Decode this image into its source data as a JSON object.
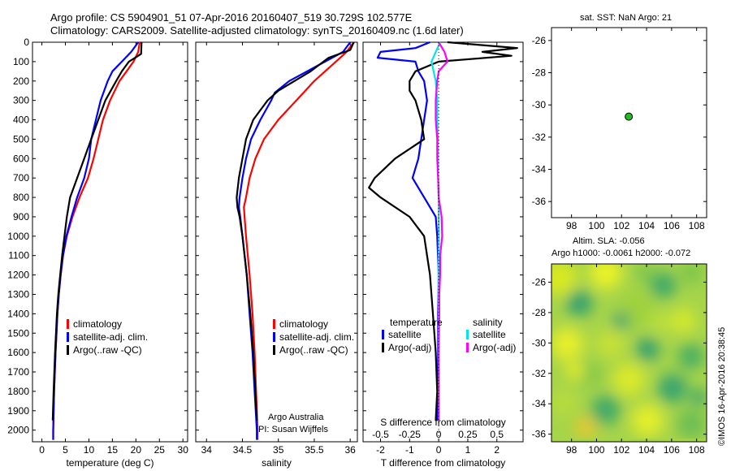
{
  "header": {
    "line1": "Argo profile: CS 5904901_51 07-Apr-2016 20160407_519 30.729S 102.577E",
    "line2": "Climatology: CARS2009. Satellite-adjusted climatology: synTS_20160409.nc (1.6d later)"
  },
  "colors": {
    "climatology": "#ff0000",
    "satellite": "#0000ff",
    "argo": "#000000",
    "salinity_sat": "#00e5e5",
    "salinity_argo": "#ff00ff"
  },
  "chart_data": [
    {
      "type": "line",
      "id": "temperature",
      "xlabel": "temperature (deg C)",
      "xlim": [
        -2,
        31
      ],
      "ylim": [
        2060,
        0
      ],
      "x_ticks": [
        0,
        5,
        10,
        15,
        20,
        25,
        30
      ],
      "y_ticks": [
        0,
        100,
        200,
        300,
        400,
        500,
        600,
        700,
        800,
        900,
        1000,
        1100,
        1200,
        1300,
        1400,
        1500,
        1600,
        1700,
        1800,
        1900,
        2000
      ],
      "legend": [
        "climatology",
        "satellite-adj. clim.",
        "Argo(..raw -QC)"
      ],
      "series": [
        {
          "name": "climatology",
          "color": "#ff0000",
          "depth": [
            0,
            50,
            100,
            150,
            200,
            300,
            400,
            500,
            600,
            700,
            800,
            900,
            1000,
            1100,
            1200,
            1300,
            1400,
            1600,
            1800,
            2000,
            2050
          ],
          "values": [
            20.8,
            20.5,
            19.5,
            18.0,
            16.5,
            14.5,
            13.0,
            12.0,
            11.0,
            9.8,
            8.0,
            6.5,
            5.3,
            4.5,
            4.0,
            3.6,
            3.3,
            2.9,
            2.6,
            2.4,
            2.4
          ]
        },
        {
          "name": "satellite-adj. clim.",
          "color": "#0000ff",
          "depth": [
            0,
            50,
            100,
            150,
            200,
            300,
            400,
            500,
            600,
            700,
            800,
            900,
            1000,
            1100,
            1200,
            1300,
            1400,
            1600,
            1800,
            2000,
            2050
          ],
          "values": [
            20.5,
            19.0,
            17.0,
            15.0,
            14.0,
            12.5,
            11.5,
            10.5,
            10.0,
            9.0,
            7.5,
            6.3,
            5.2,
            4.5,
            4.0,
            3.6,
            3.3,
            2.9,
            2.6,
            2.4,
            2.4
          ]
        },
        {
          "name": "Argo(..raw -QC)",
          "color": "#000000",
          "depth": [
            0,
            60,
            70,
            100,
            150,
            200,
            300,
            400,
            500,
            600,
            700,
            800,
            900,
            1000,
            1100,
            1200,
            1300,
            1400,
            1600,
            1800,
            1950
          ],
          "values": [
            21.2,
            21.1,
            20.5,
            18.5,
            17.0,
            15.8,
            13.5,
            12.0,
            10.5,
            9.0,
            7.5,
            6.0,
            5.3,
            4.8,
            4.3,
            3.9,
            3.5,
            3.2,
            2.8,
            2.5,
            2.3
          ]
        }
      ]
    },
    {
      "type": "line",
      "id": "salinity",
      "xlabel": "salinity",
      "xlim": [
        33.85,
        36.1
      ],
      "ylim": [
        2060,
        0
      ],
      "x_ticks": [
        34,
        34.5,
        35,
        35.5,
        36
      ],
      "x_tick_labels": [
        "34",
        "34.5",
        "35",
        "35.5",
        "36"
      ],
      "legend": [
        "climatology",
        "satellite-adj. clim.",
        "Argo(..raw -QC)"
      ],
      "annotation": [
        "Argo Australia",
        "PI: Susan Wijffels"
      ],
      "series": [
        {
          "name": "climatology",
          "color": "#ff0000",
          "depth": [
            0,
            50,
            100,
            200,
            300,
            400,
            500,
            600,
            700,
            800,
            850,
            900,
            1000,
            1200,
            1400,
            1600,
            1800,
            2000,
            2050
          ],
          "values": [
            36.05,
            35.95,
            35.8,
            35.5,
            35.25,
            35.0,
            34.8,
            34.68,
            34.6,
            34.55,
            34.52,
            34.53,
            34.55,
            34.6,
            34.64,
            34.67,
            34.69,
            34.71,
            34.71
          ]
        },
        {
          "name": "satellite-adj. clim.",
          "color": "#0000ff",
          "depth": [
            0,
            50,
            100,
            200,
            260,
            300,
            400,
            500,
            600,
            700,
            800,
            850,
            900,
            1000,
            1200,
            1400,
            1600,
            1800,
            2000,
            2050
          ],
          "values": [
            36.0,
            35.9,
            35.65,
            35.15,
            34.95,
            34.9,
            34.75,
            34.62,
            34.55,
            34.5,
            34.46,
            34.45,
            34.47,
            34.5,
            34.56,
            34.6,
            34.64,
            34.67,
            34.7,
            34.7
          ]
        },
        {
          "name": "Argo(..raw -QC)",
          "color": "#000000",
          "depth": [
            0,
            40,
            80,
            150,
            250,
            300,
            400,
            500,
            600,
            700,
            800,
            850,
            900,
            1000,
            1200,
            1400,
            1600,
            1800,
            1950
          ],
          "values": [
            36.05,
            36.0,
            35.7,
            35.45,
            35.0,
            34.85,
            34.65,
            34.55,
            34.5,
            34.45,
            34.42,
            34.43,
            34.46,
            34.5,
            34.56,
            34.61,
            34.65,
            34.68,
            34.7
          ]
        }
      ]
    },
    {
      "type": "line",
      "id": "difference",
      "xlabel": "T difference from climatology",
      "xlabel_top": "S difference from climatology",
      "xlim": [
        -2.6,
        2.9
      ],
      "ylim": [
        2060,
        0
      ],
      "x_ticks": [
        -2,
        -1,
        0,
        1,
        2
      ],
      "s_ticks": [
        -0.5,
        -0.25,
        0,
        0.25,
        0.5
      ],
      "s_tick_labels": [
        "-0.5",
        "-0.25",
        "0",
        "0.25",
        "0.5"
      ],
      "legend_temperature": {
        "title": "temperature",
        "items": [
          "satellite",
          "Argo(-adj)"
        ]
      },
      "legend_salinity": {
        "title": "salinity",
        "items": [
          "satellite",
          "Argo(-adj)"
        ]
      },
      "series": [
        {
          "name": "temperature satellite",
          "color": "#0000ff",
          "depth": [
            0,
            30,
            50,
            80,
            100,
            150,
            200,
            300,
            400,
            500,
            600,
            700,
            800,
            900,
            1000,
            1200,
            1400,
            1600,
            1800,
            1950
          ],
          "values": [
            -0.3,
            -0.8,
            -2.0,
            -2.1,
            -0.8,
            -0.7,
            -0.5,
            -0.4,
            -0.5,
            -0.6,
            -0.7,
            -0.9,
            -0.5,
            -0.1,
            -0.05,
            0.0,
            -0.02,
            -0.02,
            -0.04,
            -0.05
          ]
        },
        {
          "name": "temperature Argo(-adj)",
          "color": "#000000",
          "depth": [
            0,
            30,
            50,
            70,
            100,
            150,
            200,
            250,
            300,
            400,
            500,
            600,
            700,
            750,
            800,
            900,
            1000,
            1100,
            1200,
            1400,
            1600,
            1800,
            1950
          ],
          "values": [
            0.3,
            2.7,
            1.5,
            2.5,
            0.0,
            -0.8,
            -1.0,
            -1.0,
            -0.8,
            -0.6,
            -0.5,
            -1.5,
            -2.2,
            -2.4,
            -2.0,
            -1.0,
            -0.5,
            -0.4,
            -0.3,
            -0.2,
            -0.1,
            -0.05,
            -0.1
          ]
        },
        {
          "name": "salinity satellite",
          "color": "#00e5e5",
          "depth": [
            0,
            50,
            100,
            200,
            300,
            400,
            500,
            600,
            700,
            800,
            900,
            1000,
            1200,
            1400,
            1600,
            1800,
            1950
          ],
          "values": [
            0.05,
            -0.1,
            -0.25,
            -0.1,
            -0.05,
            -0.05,
            -0.03,
            -0.02,
            -0.02,
            0.0,
            0.0,
            0.0,
            -0.01,
            0.0,
            0.0,
            0.0,
            0.0
          ]
        },
        {
          "name": "salinity Argo(-adj)",
          "color": "#ff00ff",
          "depth": [
            0,
            50,
            100,
            150,
            200,
            300,
            400,
            500,
            600,
            700,
            800,
            900,
            1000,
            1100,
            1200,
            1300,
            1400,
            1600,
            1800,
            1950
          ],
          "values": [
            0.0,
            0.2,
            0.3,
            0.0,
            -0.05,
            -0.1,
            -0.1,
            -0.05,
            -0.05,
            -0.02,
            0.0,
            0.1,
            0.12,
            0.05,
            0.05,
            0.02,
            0.02,
            0.0,
            0.0,
            0.0
          ]
        }
      ]
    },
    {
      "type": "scatter",
      "id": "location",
      "title": "sat. SST: NaN Argo: 21",
      "xlim": [
        96.4,
        108.8
      ],
      "ylim": [
        -37,
        -25.2
      ],
      "x_ticks": [
        98,
        100,
        102,
        104,
        106,
        108
      ],
      "y_ticks": [
        -26,
        -28,
        -30,
        -32,
        -34,
        -36
      ],
      "points": [
        {
          "x": 102.577,
          "y": -30.729,
          "color": "#22bb22"
        }
      ]
    },
    {
      "type": "heatmap",
      "id": "sla",
      "title_line1": "Altim. SLA: -0.056",
      "title_line2": "Argo h1000: -0.0061 h2000: -0.072",
      "xlim": [
        96.4,
        108.8
      ],
      "ylim": [
        -36.5,
        -24.8
      ],
      "x_ticks": [
        98,
        100,
        102,
        104,
        106,
        108
      ],
      "y_ticks": [
        -26,
        -28,
        -30,
        -32,
        -34,
        -36
      ],
      "credit": "©IMOS 16-Apr-2016 20:38:45"
    }
  ]
}
